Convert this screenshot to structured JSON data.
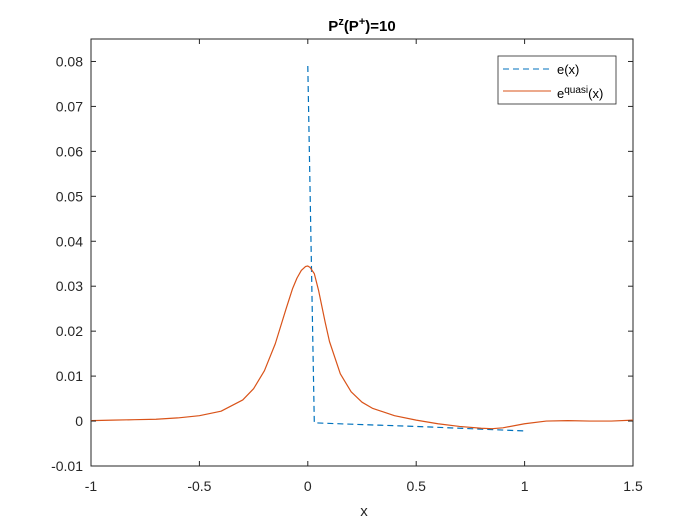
{
  "chart_data": {
    "type": "line",
    "title": {
      "base": "P",
      "sup1": "z",
      "mid": "(P",
      "sup2": "+",
      "end": ")=10"
    },
    "xlabel": "x",
    "ylabel": "",
    "xlim": [
      -1,
      1.5
    ],
    "ylim": [
      -0.01,
      0.085
    ],
    "xticks": [
      -1,
      -0.5,
      0,
      0.5,
      1,
      1.5
    ],
    "xtick_labels": [
      "-1",
      "-0.5",
      "0",
      "0.5",
      "1",
      "1.5"
    ],
    "yticks": [
      -0.01,
      0,
      0.01,
      0.02,
      0.03,
      0.04,
      0.05,
      0.06,
      0.07,
      0.08
    ],
    "ytick_labels": [
      "-0.01",
      "0",
      "0.01",
      "0.02",
      "0.03",
      "0.04",
      "0.05",
      "0.06",
      "0.07",
      "0.08"
    ],
    "grid": false,
    "legend_position": "top-right",
    "series": [
      {
        "name": "e(x)",
        "legend": {
          "base": "e(x)"
        },
        "color": "#0072BD",
        "style": "dashed",
        "x": [
          0,
          0,
          0.03,
          0.2,
          0.5,
          0.8,
          1.0
        ],
        "y": [
          0.079,
          0.079,
          -0.0004,
          -0.0007,
          -0.0012,
          -0.0018,
          -0.0022
        ]
      },
      {
        "name": "equasi(x)",
        "legend": {
          "base": "e",
          "sup": "quasi",
          "end": "(x)"
        },
        "color": "#D95319",
        "style": "solid",
        "x": [
          -1,
          -0.9,
          -0.8,
          -0.7,
          -0.6,
          -0.5,
          -0.4,
          -0.3,
          -0.25,
          -0.2,
          -0.15,
          -0.1,
          -0.07,
          -0.05,
          -0.03,
          -0.01,
          0,
          0.01,
          0.03,
          0.05,
          0.08,
          0.1,
          0.15,
          0.2,
          0.25,
          0.3,
          0.4,
          0.5,
          0.6,
          0.7,
          0.8,
          0.85,
          0.9,
          1.0,
          1.1,
          1.2,
          1.3,
          1.4,
          1.5
        ],
        "y": [
          0.0001,
          0.0002,
          0.0003,
          0.0004,
          0.0007,
          0.0012,
          0.0022,
          0.0047,
          0.0072,
          0.0112,
          0.0172,
          0.025,
          0.0295,
          0.0318,
          0.0335,
          0.0344,
          0.0345,
          0.0342,
          0.0328,
          0.029,
          0.022,
          0.0177,
          0.0105,
          0.0065,
          0.0042,
          0.0028,
          0.0012,
          0.0002,
          -0.0006,
          -0.0012,
          -0.0016,
          -0.0017,
          -0.0015,
          -0.0006,
          0.0,
          0.0001,
          0.0,
          0.0,
          0.0002
        ]
      }
    ]
  }
}
